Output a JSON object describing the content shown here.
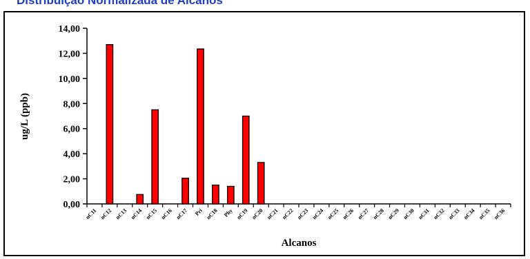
{
  "page": {
    "title": "Distribuição Normalizada de Alcanos"
  },
  "colors": {
    "bar_fill": "#ff0000",
    "bar_stroke": "#000000",
    "axis": "#000000"
  },
  "chart_data": {
    "type": "bar",
    "title": "Distribuição Normalizada de Alcanos",
    "xlabel": "Alcanos",
    "ylabel": "ug/L (ppb)",
    "ylim": [
      0,
      14
    ],
    "yticks": [
      "0,00",
      "2,00",
      "4,00",
      "6,00",
      "8,00",
      "10,00",
      "12,00",
      "14,00"
    ],
    "grid": false,
    "legend": "none",
    "categories": [
      "nC11",
      "nC12",
      "nC13",
      "nC14",
      "nC15",
      "nC16",
      "nC17",
      "Pri",
      "nC18",
      "Phy",
      "nC19",
      "nC20",
      "nC21",
      "nC22",
      "nC23",
      "nC24",
      "nC25",
      "nC26",
      "nC27",
      "nC28",
      "nC29",
      "nC30",
      "nC31",
      "nC32",
      "nC33",
      "nC34",
      "nC35",
      "nC36"
    ],
    "values": [
      0,
      12.7,
      0,
      0.75,
      7.5,
      0,
      2.05,
      12.35,
      1.5,
      1.4,
      7.0,
      3.3,
      0,
      0,
      0,
      0,
      0,
      0,
      0,
      0,
      0,
      0,
      0,
      0,
      0,
      0,
      0,
      0
    ]
  }
}
